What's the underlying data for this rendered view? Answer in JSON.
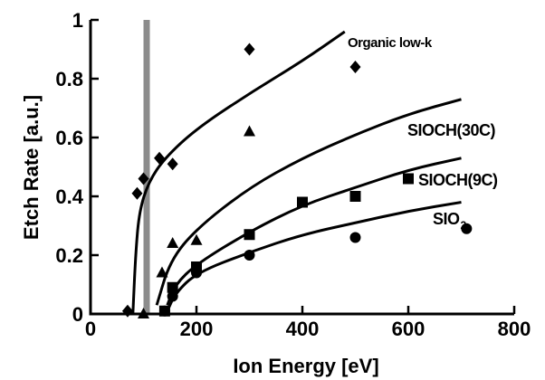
{
  "chart_data": {
    "type": "scatter",
    "xlabel": "Ion Energy [eV]",
    "ylabel": "Etch Rate [a.u.]",
    "xlim": [
      0,
      800
    ],
    "ylim": [
      0,
      1
    ],
    "xticks": [
      0,
      200,
      400,
      600,
      800
    ],
    "yticks": [
      0,
      0.2,
      0.4,
      0.6,
      0.8,
      1
    ],
    "yticklabels": [
      "0",
      "0.2",
      "0.4",
      "0.6",
      "0.8",
      "1"
    ],
    "grid": false,
    "threshold_band": {
      "x_range": [
        100,
        112
      ],
      "color": "#8c8c8c"
    },
    "series": [
      {
        "name": "Organic low-k",
        "label_text": "Organic low-k",
        "marker": "diamond",
        "points": [
          [
            70,
            0.01
          ],
          [
            88,
            0.41
          ],
          [
            100,
            0.46
          ],
          [
            130,
            0.53
          ],
          [
            155,
            0.51
          ],
          [
            300,
            0.9
          ],
          [
            500,
            0.84
          ]
        ],
        "fit": [
          [
            80,
            0.0
          ],
          [
            85,
            0.2
          ],
          [
            92,
            0.35
          ],
          [
            110,
            0.45
          ],
          [
            140,
            0.53
          ],
          [
            200,
            0.63
          ],
          [
            300,
            0.75
          ],
          [
            400,
            0.86
          ],
          [
            480,
            0.96
          ]
        ]
      },
      {
        "name": "SiOCH(30C)",
        "label_text": "SIOCH(30C)",
        "marker": "triangle",
        "points": [
          [
            100,
            0.0
          ],
          [
            135,
            0.14
          ],
          [
            155,
            0.24
          ],
          [
            200,
            0.25
          ],
          [
            300,
            0.62
          ]
        ],
        "fit": [
          [
            125,
            0.03
          ],
          [
            150,
            0.18
          ],
          [
            200,
            0.29
          ],
          [
            300,
            0.43
          ],
          [
            400,
            0.53
          ],
          [
            500,
            0.61
          ],
          [
            600,
            0.68
          ],
          [
            700,
            0.73
          ]
        ]
      },
      {
        "name": "SiOCH(9C)",
        "label_text": "SIOCH(9C)",
        "marker": "square",
        "points": [
          [
            140,
            0.01
          ],
          [
            155,
            0.09
          ],
          [
            200,
            0.16
          ],
          [
            300,
            0.27
          ],
          [
            400,
            0.38
          ],
          [
            500,
            0.4
          ],
          [
            600,
            0.46
          ]
        ],
        "fit": [
          [
            145,
            0.03
          ],
          [
            160,
            0.1
          ],
          [
            200,
            0.17
          ],
          [
            300,
            0.28
          ],
          [
            400,
            0.37
          ],
          [
            500,
            0.43
          ],
          [
            600,
            0.49
          ],
          [
            700,
            0.53
          ]
        ]
      },
      {
        "name": "SiO2",
        "label_text": "SIO",
        "label_sub": "2",
        "marker": "circle",
        "points": [
          [
            140,
            0.01
          ],
          [
            155,
            0.06
          ],
          [
            200,
            0.14
          ],
          [
            300,
            0.2
          ],
          [
            500,
            0.26
          ],
          [
            710,
            0.29
          ]
        ],
        "fit": [
          [
            145,
            0.01
          ],
          [
            160,
            0.07
          ],
          [
            200,
            0.14
          ],
          [
            300,
            0.21
          ],
          [
            400,
            0.27
          ],
          [
            500,
            0.31
          ],
          [
            600,
            0.35
          ],
          [
            700,
            0.38
          ]
        ]
      }
    ]
  }
}
